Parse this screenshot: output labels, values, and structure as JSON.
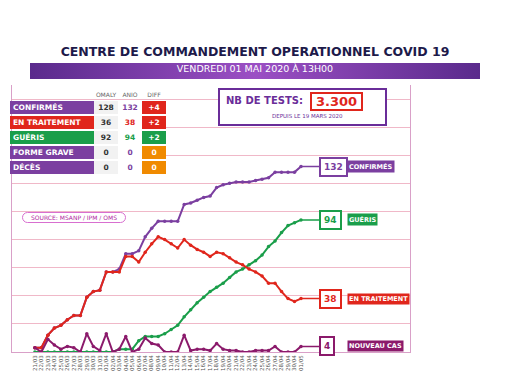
{
  "chart_data": {
    "type": "line",
    "categories": [
      "21/03",
      "22/03",
      "23/03",
      "24/03",
      "25/03",
      "26/03",
      "27/03",
      "28/03",
      "29/03",
      "30/03",
      "31/03",
      "01/04",
      "02/04",
      "03/04",
      "04/04",
      "05/04",
      "06/04",
      "07/04",
      "08/04",
      "09/04",
      "10/04",
      "11/04",
      "12/04",
      "13/04",
      "14/04",
      "15/04",
      "16/04",
      "17/04",
      "18/04",
      "19/04",
      "20/04",
      "21/04",
      "22/04",
      "23/04",
      "24/04",
      "25/04",
      "26/04",
      "27/04",
      "28/04",
      "29/04",
      "30/04",
      "01/05"
    ],
    "series": [
      {
        "name": "CONFIRMÉS",
        "color": "#7b3fa0",
        "marker": "circle",
        "line_style": "solid",
        "values": [
          3,
          3,
          12,
          17,
          19,
          23,
          26,
          26,
          39,
          43,
          44,
          57,
          57,
          59,
          70,
          70,
          72,
          82,
          88,
          93,
          93,
          93,
          93,
          105,
          106,
          108,
          110,
          111,
          117,
          119,
          120,
          121,
          121,
          121,
          122,
          123,
          124,
          128,
          128,
          128,
          128,
          132
        ]
      },
      {
        "name": "GUÉRIS",
        "color": "#1a9e4a",
        "marker": "circle",
        "line_style": "solid",
        "values": [
          0,
          0,
          0,
          0,
          0,
          0,
          0,
          0,
          0,
          0,
          0,
          0,
          0,
          2,
          2,
          2,
          8,
          11,
          11,
          11,
          13,
          16,
          19,
          25,
          30,
          35,
          39,
          43,
          46,
          49,
          53,
          57,
          59,
          62,
          65,
          69,
          75,
          79,
          85,
          90,
          92,
          94
        ]
      },
      {
        "name": "EN TRAITEMENT",
        "color": "#e0261c",
        "marker": "circle",
        "line_style": "solid",
        "values": [
          3,
          3,
          12,
          17,
          19,
          23,
          26,
          26,
          39,
          43,
          44,
          57,
          57,
          57,
          68,
          68,
          64,
          71,
          77,
          82,
          80,
          77,
          74,
          80,
          76,
          73,
          71,
          68,
          71,
          70,
          67,
          64,
          62,
          59,
          57,
          54,
          49,
          49,
          43,
          38,
          36,
          38
        ]
      },
      {
        "name": "NOUVEAU CAS",
        "color": "#8b1a6b",
        "marker": "circle",
        "line_style": "solid",
        "values": [
          3,
          0,
          9,
          5,
          2,
          4,
          3,
          0,
          13,
          4,
          1,
          13,
          0,
          2,
          11,
          0,
          2,
          10,
          6,
          5,
          0,
          0,
          0,
          12,
          1,
          2,
          2,
          1,
          6,
          2,
          1,
          1,
          0,
          0,
          1,
          1,
          1,
          4,
          0,
          0,
          0,
          4
        ]
      }
    ],
    "ylim": [
      0,
      190
    ],
    "yticks": [
      0,
      20,
      40,
      60,
      80,
      100,
      120,
      140,
      160,
      180
    ],
    "grid": true,
    "tick_labels": "x"
  },
  "header": {
    "title": "CENTRE DE COMMANDEMENT OPERATIONNEL COVID 19",
    "subtitle": "VENDREDI 01 MAI 2020 À 13H00"
  },
  "tests": {
    "label": "NB DE TESTS:",
    "value": "3.300",
    "since": "DEPUIS LE 19 MARS 2020"
  },
  "table": {
    "columns": [
      "OMALY",
      "ANIO",
      "DIFF"
    ],
    "rows": [
      {
        "label": "CONFIRMÉS",
        "color": "#7b3fa0",
        "values": [
          128,
          132
        ],
        "diff": "+4"
      },
      {
        "label": "EN TRAITEMENT",
        "color": "#e0261c",
        "values": [
          36,
          38
        ],
        "diff": "+2"
      },
      {
        "label": "GUÉRIS",
        "color": "#1a9e4a",
        "values": [
          92,
          94
        ],
        "diff": "+2"
      },
      {
        "label": "FORME GRAVE",
        "color": "#7b3fa0",
        "values": [
          0,
          0
        ],
        "diff": "0"
      },
      {
        "label": "DÉCÈS",
        "color": "#7b3fa0",
        "values": [
          0,
          0
        ],
        "diff": "0"
      }
    ]
  },
  "source": "SOURCE: MSANP / IPM / OMS"
}
